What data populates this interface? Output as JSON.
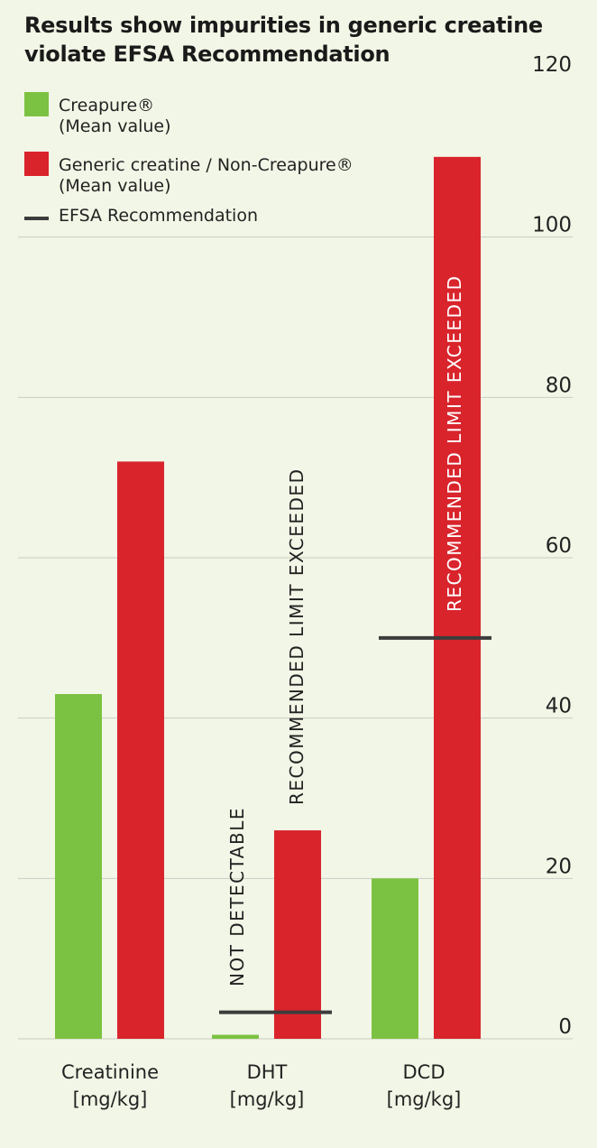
{
  "chart_data": {
    "type": "bar",
    "title": "Results show impurities in generic creatine violate EFSA Recommendation",
    "categories": [
      "Creatinine",
      "DHT",
      "DCD"
    ],
    "category_units": "[mg/kg]",
    "series": [
      {
        "name": "Creapure® (Mean value)",
        "color": "#7cc242",
        "values": [
          43,
          0.5,
          20
        ]
      },
      {
        "name": "Generic creatine / Non-Creapure® (Mean value)",
        "color": "#d9242c",
        "values": [
          72,
          26,
          110
        ]
      }
    ],
    "reference": {
      "name": "EFSA Recommendation",
      "color": "#3c3c3c",
      "values": [
        null,
        3.3,
        50
      ]
    },
    "annotations": [
      {
        "text": "NOT DETECTABLE",
        "category": "DHT",
        "series": 0
      },
      {
        "text": "RECOMMENDED LIMIT EXCEEDED",
        "category": "DHT",
        "series": 1
      },
      {
        "text": "RECOMMENDED LIMIT EXCEEDED",
        "category": "DCD",
        "series": 1
      }
    ],
    "ylim": [
      0,
      120
    ],
    "yticks": [
      0,
      20,
      40,
      60,
      80,
      100,
      120
    ],
    "grid": true,
    "legend_position": "top-left"
  },
  "legend": {
    "creapure_line1": "Creapure®",
    "creapure_line2": "(Mean value)",
    "generic_line1": "Generic creatine / Non-Creapure®",
    "generic_line2": "(Mean value)",
    "efsa": "EFSA Recommendation"
  }
}
